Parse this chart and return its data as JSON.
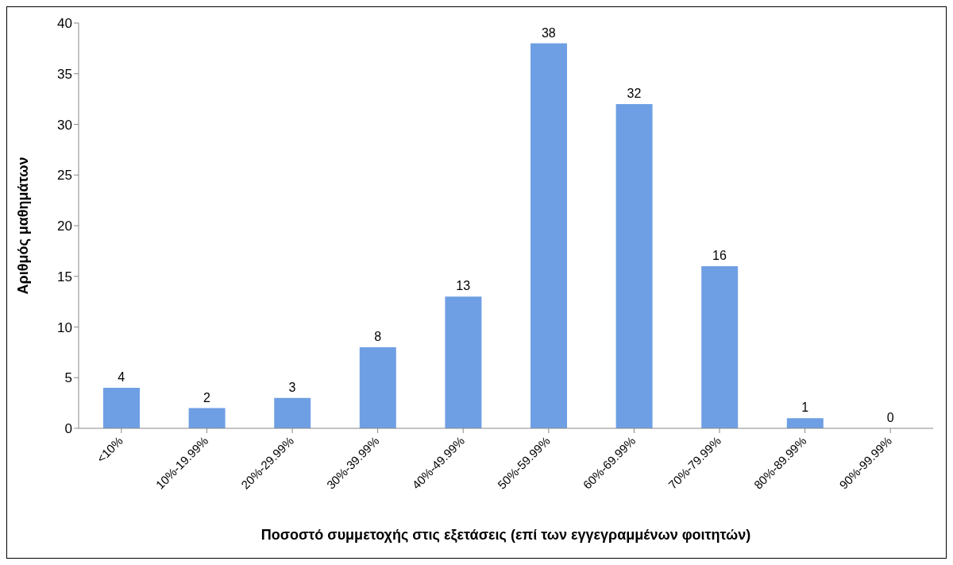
{
  "chart_data": {
    "type": "bar",
    "xlabel": "Ποσοστό συμμετοχής στις εξετάσεις (επί των εγγεγραμμένων φοιτητών)",
    "ylabel": "Αριθμός μαθημάτων",
    "categories": [
      "<10%",
      "10%-19.99%",
      "20%-29.99%",
      "30%-39.99%",
      "40%-49.99%",
      "50%-59.99%",
      "60%-69.99%",
      "70%-79.99%",
      "80%-89.99%",
      "90%-99.99%"
    ],
    "values": [
      4,
      2,
      3,
      8,
      13,
      38,
      32,
      16,
      1,
      0
    ],
    "color": "#6e9fe4",
    "ylim": [
      0,
      40
    ],
    "yticks": [
      0,
      5,
      10,
      15,
      20,
      25,
      30,
      35,
      40
    ],
    "grid": false,
    "legend": false,
    "data_labels": true
  }
}
